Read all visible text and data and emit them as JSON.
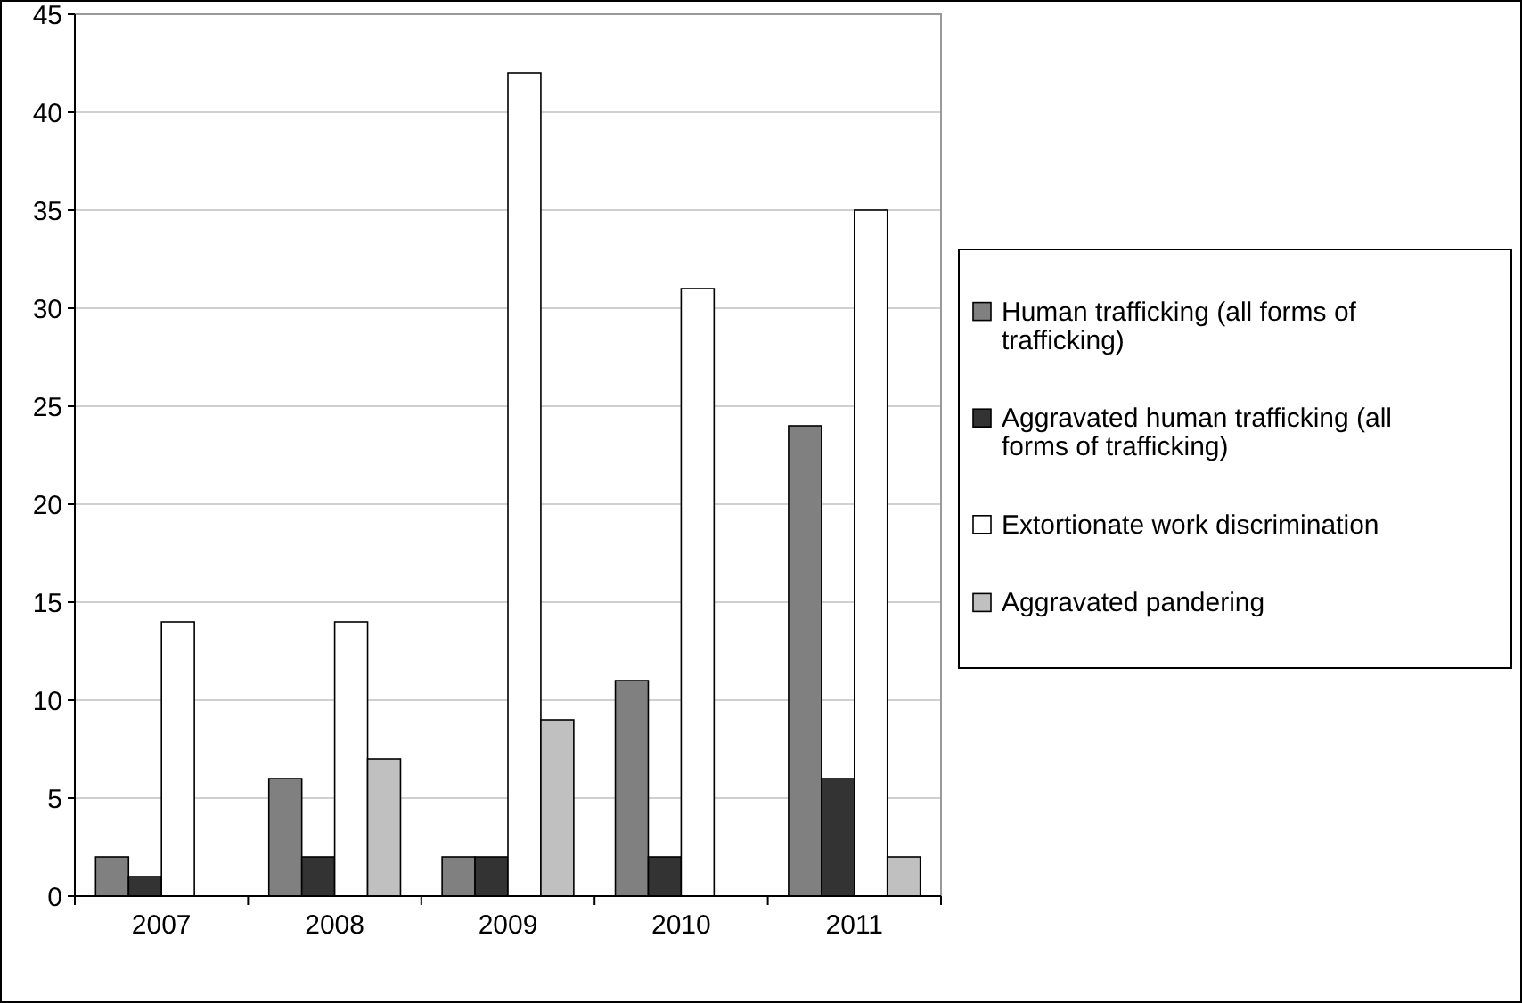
{
  "chart_data": {
    "type": "bar",
    "categories": [
      "2007",
      "2008",
      "2009",
      "2010",
      "2011"
    ],
    "series": [
      {
        "name": "Human trafficking (all forms of trafficking)",
        "color": "#808080",
        "values": [
          2,
          6,
          2,
          11,
          24
        ]
      },
      {
        "name": "Aggravated human trafficking (all forms of trafficking)",
        "color": "#333333",
        "values": [
          1,
          2,
          2,
          2,
          6
        ]
      },
      {
        "name": "Extortionate work discrimination",
        "color": "#ffffff",
        "values": [
          14,
          14,
          42,
          31,
          35
        ]
      },
      {
        "name": "Aggravated pandering",
        "color": "#c0c0c0",
        "values": [
          null,
          7,
          9,
          null,
          2
        ]
      }
    ],
    "ylim": [
      0,
      45
    ],
    "yticks": [
      0,
      5,
      10,
      15,
      20,
      25,
      30,
      35,
      40,
      45
    ],
    "grid": "y",
    "legend": "right"
  }
}
